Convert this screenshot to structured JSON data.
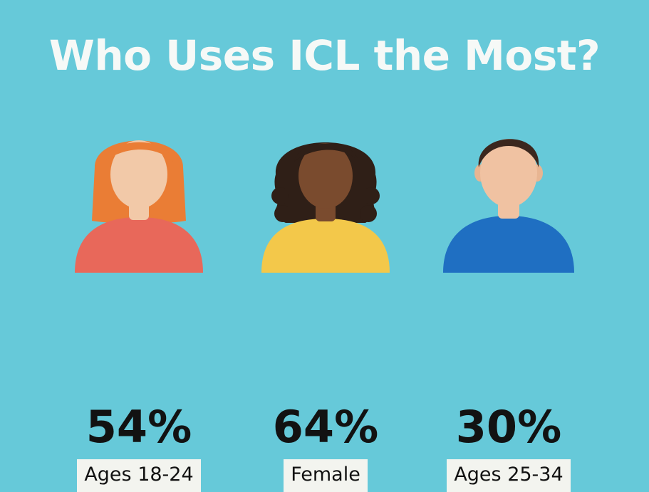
{
  "title": "Who Uses ICL the Most?",
  "background_color": "#66c9d9",
  "groups": [
    {
      "percent": "54%",
      "label": "Ages 18-24",
      "value": 54,
      "icon": "woman-red-hair-icon",
      "hair_color": "#ea7d35",
      "skin_color": "#f2c9a8",
      "shirt_color": "#e8685a"
    },
    {
      "percent": "64%",
      "label": "Female",
      "value": 64,
      "icon": "woman-curly-hair-icon",
      "hair_color": "#2f1f17",
      "skin_color": "#7a4b2e",
      "shirt_color": "#f3c84a"
    },
    {
      "percent": "30%",
      "label": "Ages 25-34",
      "value": 30,
      "icon": "man-short-hair-icon",
      "hair_color": "#3b271e",
      "skin_color": "#f0c2a2",
      "shirt_color": "#1f6fc2"
    }
  ]
}
